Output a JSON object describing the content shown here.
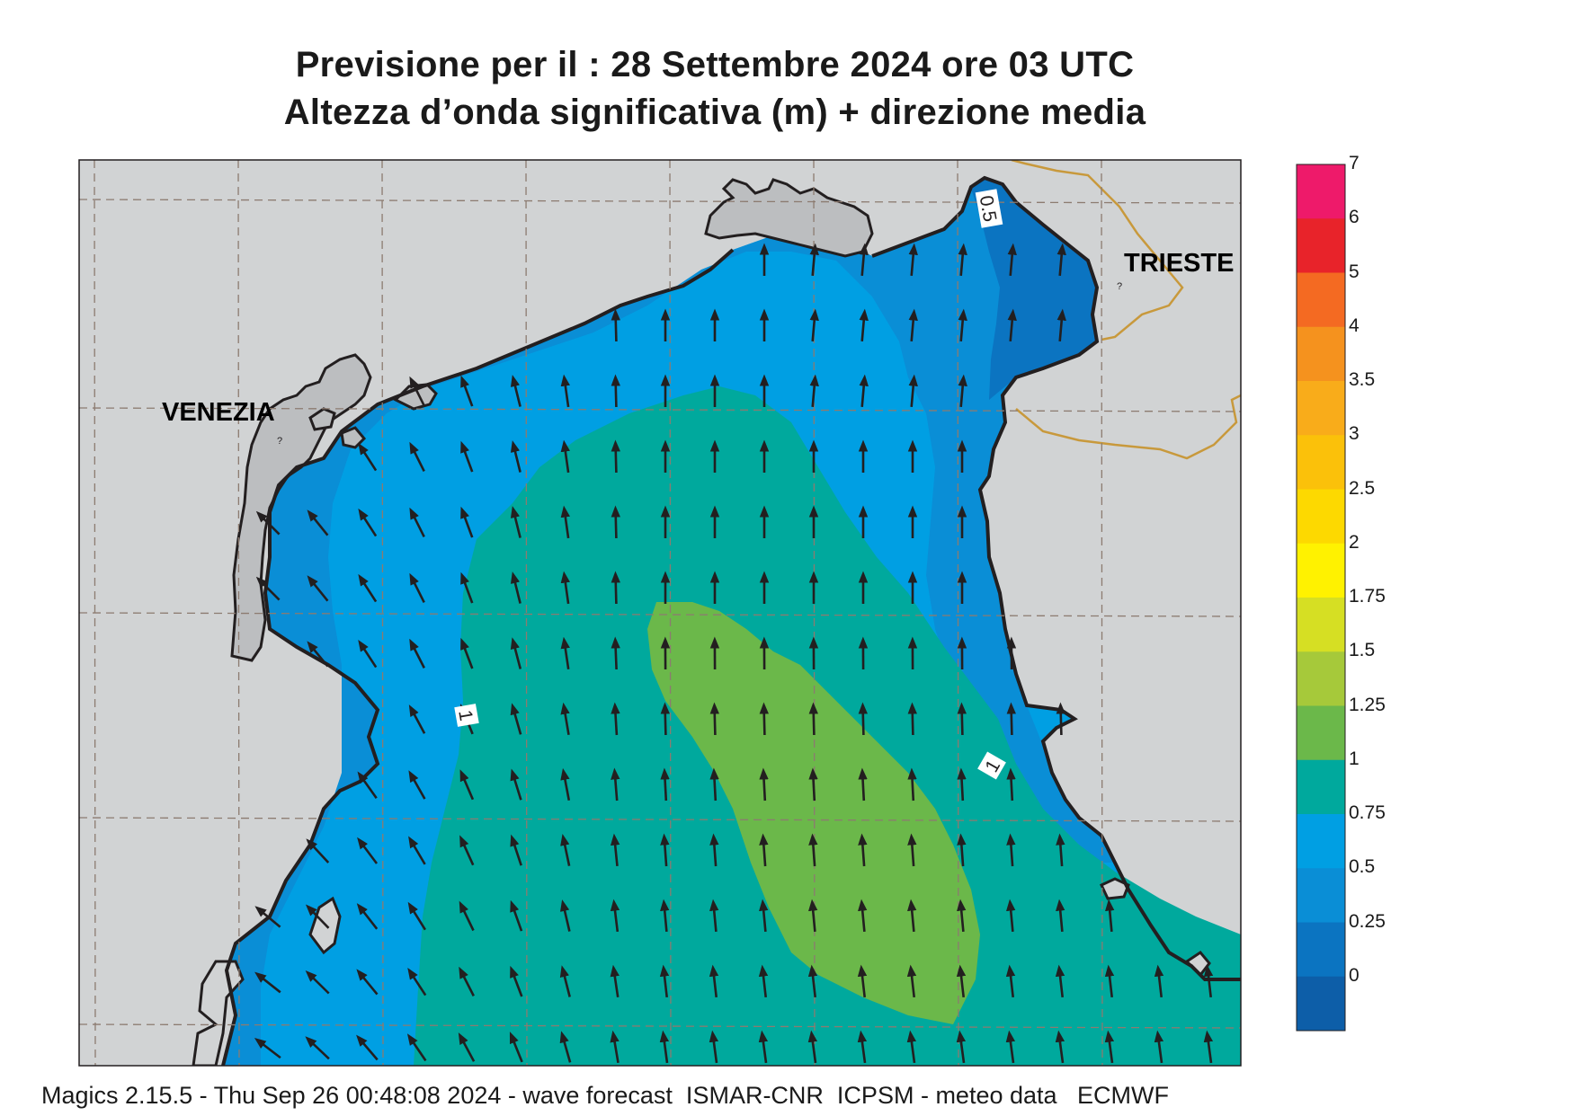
{
  "title": {
    "line1": "Previsione per il  :  28 Settembre 2024   ore 03 UTC",
    "line2": "Altezza d’onda significativa (m) + direzione media"
  },
  "places": {
    "venezia": "VENEZIA",
    "trieste": "TRIESTE",
    "trieste_marker": "?",
    "venezia_marker": "?"
  },
  "contour_labels": {
    "top": "0.5",
    "left": "1",
    "right": "1"
  },
  "colorbar": {
    "ticks": [
      "7",
      "6",
      "5",
      "4",
      "3.5",
      "3",
      "2.5",
      "2",
      "1.75",
      "1.5",
      "1.25",
      "1",
      "0.75",
      "0.5",
      "0.25",
      "0"
    ],
    "colors": [
      "#ee1a6a",
      "#e8232a",
      "#f46a22",
      "#f5921e",
      "#f9ac1a",
      "#fbc10a",
      "#fdd900",
      "#fff200",
      "#d6df23",
      "#a6c93a",
      "#6bb84a",
      "#00a99d",
      "#009fe3",
      "#0a8ed6",
      "#0b74c1",
      "#0d5ea8"
    ]
  },
  "legend_colors": {
    "land": "#d1d3d4",
    "lagoon": "#bcbec0",
    "coast": "#231f20",
    "border": "#c8993c",
    "grid": "#8c7b70",
    "sea_025_05": "#0b74c1",
    "sea_05_075": "#0a8ed6",
    "sea_075_1": "#009fe3",
    "sea_1_125": "#00a99d",
    "sea_125_15": "#6bb84a",
    "arrow": "#231f20"
  },
  "footer": "Magics 2.15.5 - Thu Sep 26 00:48:08 2024 - wave forecast  ISMAR-CNR  ICPSM - meteo data   ECMWF"
}
